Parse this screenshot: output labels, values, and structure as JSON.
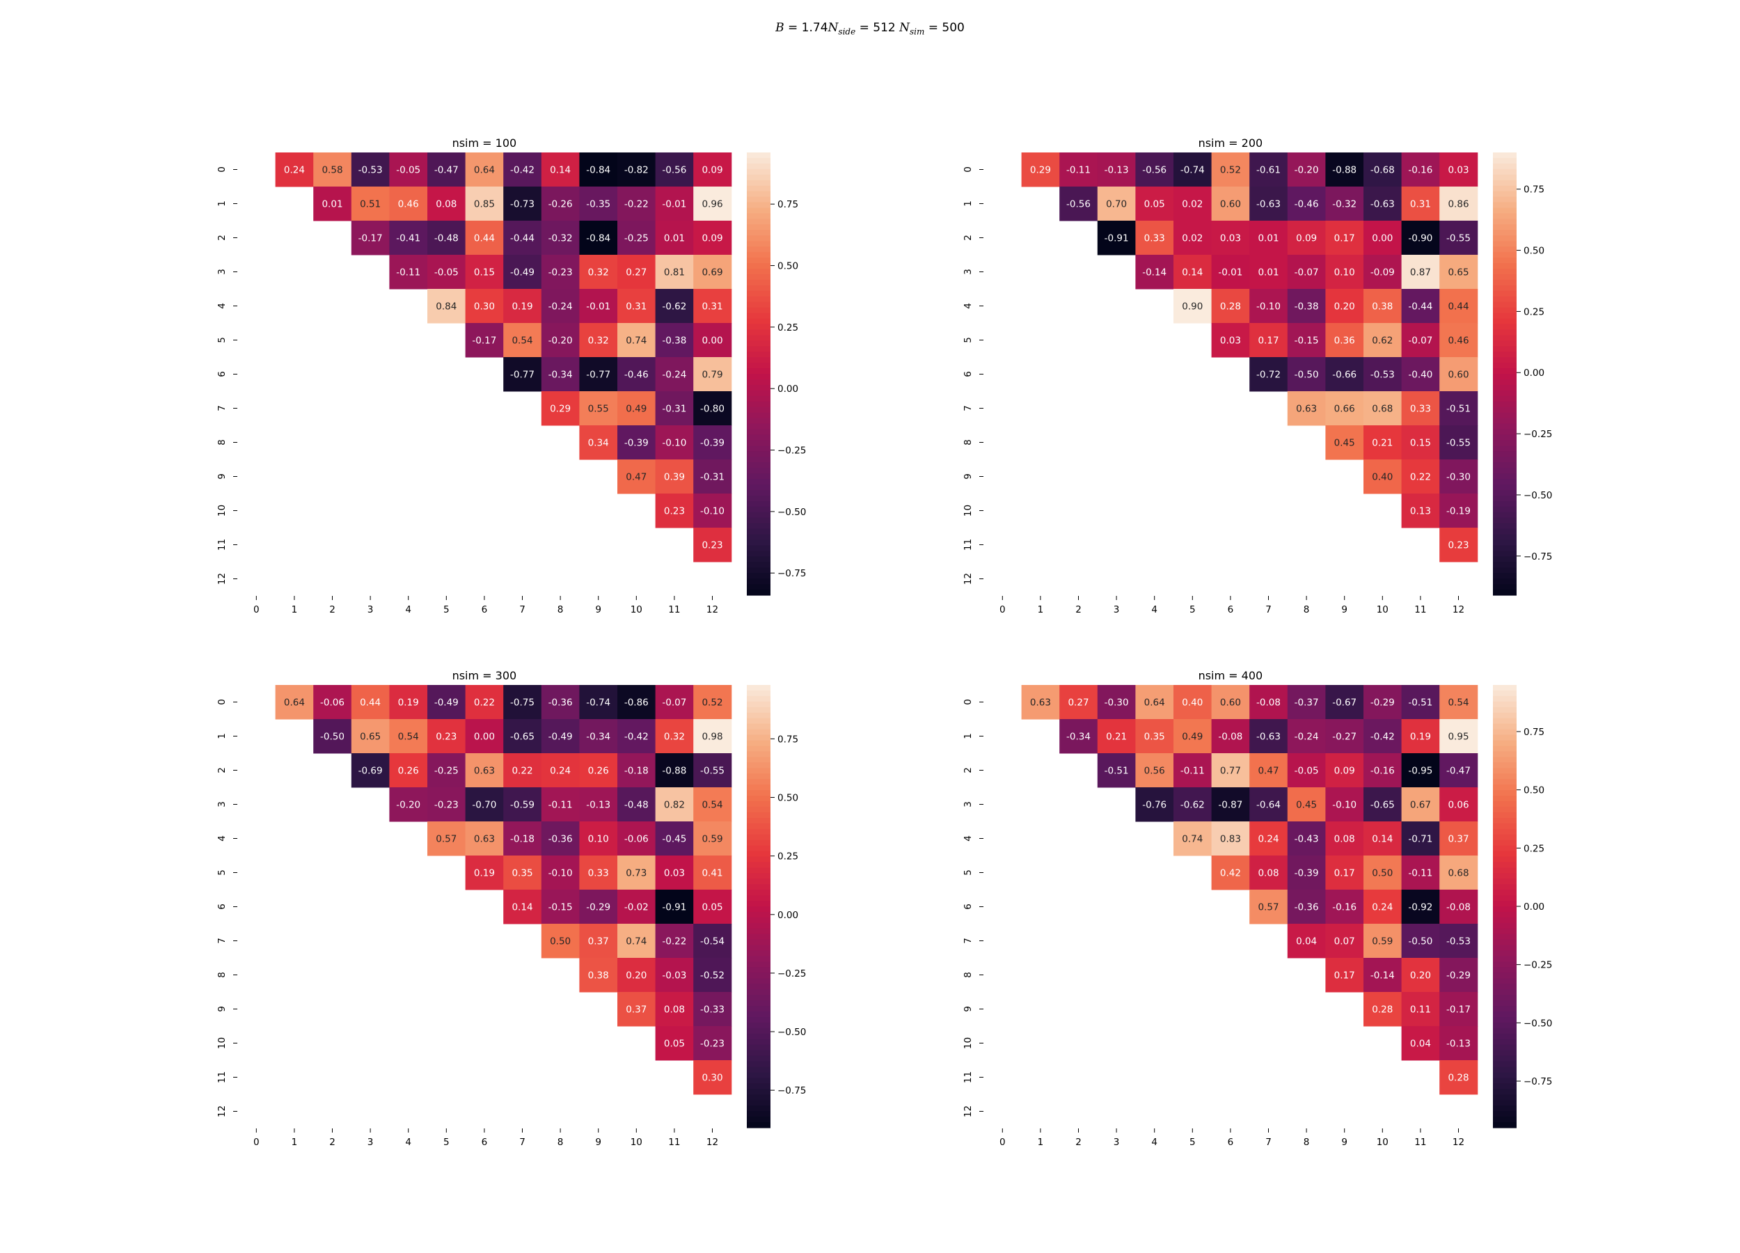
{
  "figure": {
    "suptitle": {
      "B": "1.74",
      "nside_label": "side",
      "nside": "512",
      "nsim_label": "sim",
      "nsim": "500"
    }
  },
  "chart_data": [
    {
      "type": "heatmap",
      "title": "nsim = 100",
      "x_ticks": [
        "0",
        "1",
        "2",
        "3",
        "4",
        "5",
        "6",
        "7",
        "8",
        "9",
        "10",
        "11",
        "12"
      ],
      "y_ticks": [
        "0",
        "1",
        "2",
        "3",
        "4",
        "5",
        "6",
        "7",
        "8",
        "9",
        "10",
        "11",
        "12"
      ],
      "colorbar": {
        "vmin": -0.84,
        "vmax": 0.96,
        "ticks": [
          "0.75",
          "0.50",
          "0.25",
          "0.00",
          "−0.25",
          "−0.50",
          "−0.75"
        ]
      },
      "rows": [
        [
          0.24,
          0.58,
          -0.53,
          -0.05,
          -0.47,
          0.64,
          -0.42,
          0.14,
          -0.84,
          -0.82,
          -0.56,
          0.09
        ],
        [
          0.01,
          0.51,
          0.46,
          0.08,
          0.85,
          -0.73,
          -0.26,
          -0.35,
          -0.22,
          -0.01,
          0.96
        ],
        [
          -0.17,
          -0.41,
          -0.48,
          0.44,
          -0.44,
          -0.32,
          -0.84,
          -0.25,
          0.01,
          0.09
        ],
        [
          -0.11,
          -0.05,
          0.15,
          -0.49,
          -0.23,
          0.32,
          0.27,
          0.81,
          0.69
        ],
        [
          0.84,
          0.3,
          0.19,
          -0.24,
          -0.01,
          0.31,
          -0.62,
          0.31
        ],
        [
          -0.17,
          0.54,
          -0.2,
          0.32,
          0.74,
          -0.38,
          0.0
        ],
        [
          -0.77,
          -0.34,
          -0.77,
          -0.46,
          -0.24,
          0.79
        ],
        [
          0.29,
          0.55,
          0.49,
          -0.31,
          -0.8
        ],
        [
          0.34,
          -0.39,
          -0.1,
          -0.39
        ],
        [
          0.47,
          0.39,
          -0.31
        ],
        [
          0.23,
          -0.1
        ],
        [
          0.23
        ]
      ]
    },
    {
      "type": "heatmap",
      "title": "nsim = 200",
      "x_ticks": [
        "0",
        "1",
        "2",
        "3",
        "4",
        "5",
        "6",
        "7",
        "8",
        "9",
        "10",
        "11",
        "12"
      ],
      "y_ticks": [
        "0",
        "1",
        "2",
        "3",
        "4",
        "5",
        "6",
        "7",
        "8",
        "9",
        "10",
        "11",
        "12"
      ],
      "colorbar": {
        "vmin": -0.91,
        "vmax": 0.9,
        "ticks": [
          "0.75",
          "0.50",
          "0.25",
          "0.00",
          "−0.25",
          "−0.50",
          "−0.75"
        ]
      },
      "rows": [
        [
          0.29,
          -0.11,
          -0.13,
          -0.56,
          -0.74,
          0.52,
          -0.61,
          -0.2,
          -0.88,
          -0.68,
          -0.16,
          0.03
        ],
        [
          -0.56,
          0.7,
          0.05,
          0.02,
          0.6,
          -0.63,
          -0.46,
          -0.32,
          -0.63,
          0.31,
          0.86
        ],
        [
          -0.91,
          0.33,
          0.02,
          0.03,
          0.01,
          0.09,
          0.17,
          0.0,
          -0.9,
          -0.55
        ],
        [
          -0.14,
          0.14,
          -0.01,
          0.01,
          -0.07,
          0.1,
          -0.09,
          0.87,
          0.65
        ],
        [
          0.9,
          0.28,
          -0.1,
          -0.38,
          0.2,
          0.38,
          -0.44,
          0.44
        ],
        [
          0.03,
          0.17,
          -0.15,
          0.36,
          0.62,
          -0.07,
          0.46
        ],
        [
          -0.72,
          -0.5,
          -0.66,
          -0.53,
          -0.4,
          0.6
        ],
        [
          0.63,
          0.66,
          0.68,
          0.33,
          -0.51
        ],
        [
          0.45,
          0.21,
          0.15,
          -0.55
        ],
        [
          0.4,
          0.22,
          -0.3
        ],
        [
          0.13,
          -0.19
        ],
        [
          0.23
        ]
      ]
    },
    {
      "type": "heatmap",
      "title": "nsim = 300",
      "x_ticks": [
        "0",
        "1",
        "2",
        "3",
        "4",
        "5",
        "6",
        "7",
        "8",
        "9",
        "10",
        "11",
        "12"
      ],
      "y_ticks": [
        "0",
        "1",
        "2",
        "3",
        "4",
        "5",
        "6",
        "7",
        "8",
        "9",
        "10",
        "11",
        "12"
      ],
      "colorbar": {
        "vmin": -0.91,
        "vmax": 0.98,
        "ticks": [
          "0.75",
          "0.50",
          "0.25",
          "0.00",
          "−0.25",
          "−0.50",
          "−0.75"
        ]
      },
      "rows": [
        [
          0.64,
          -0.06,
          0.44,
          0.19,
          -0.49,
          0.22,
          -0.75,
          -0.36,
          -0.74,
          -0.86,
          -0.07,
          0.52
        ],
        [
          -0.5,
          0.65,
          0.54,
          0.23,
          0.0,
          -0.65,
          -0.49,
          -0.34,
          -0.42,
          0.32,
          0.98
        ],
        [
          -0.69,
          0.26,
          -0.25,
          0.63,
          0.22,
          0.24,
          0.26,
          -0.18,
          -0.88,
          -0.55
        ],
        [
          -0.2,
          -0.23,
          -0.7,
          -0.59,
          -0.11,
          -0.13,
          -0.48,
          0.82,
          0.54
        ],
        [
          0.57,
          0.63,
          -0.18,
          -0.36,
          0.1,
          -0.06,
          -0.45,
          0.59
        ],
        [
          0.19,
          0.35,
          -0.1,
          0.33,
          0.73,
          0.03,
          0.41
        ],
        [
          0.14,
          -0.15,
          -0.29,
          -0.02,
          -0.91,
          0.05
        ],
        [
          0.5,
          0.37,
          0.74,
          -0.22,
          -0.54
        ],
        [
          0.38,
          0.2,
          -0.03,
          -0.52
        ],
        [
          0.37,
          0.08,
          -0.33
        ],
        [
          0.05,
          -0.23
        ],
        [
          0.3
        ]
      ]
    },
    {
      "type": "heatmap",
      "title": "nsim = 400",
      "x_ticks": [
        "0",
        "1",
        "2",
        "3",
        "4",
        "5",
        "6",
        "7",
        "8",
        "9",
        "10",
        "11",
        "12"
      ],
      "y_ticks": [
        "0",
        "1",
        "2",
        "3",
        "4",
        "5",
        "6",
        "7",
        "8",
        "9",
        "10",
        "11",
        "12"
      ],
      "colorbar": {
        "vmin": -0.95,
        "vmax": 0.95,
        "ticks": [
          "0.75",
          "0.50",
          "0.25",
          "0.00",
          "−0.25",
          "−0.50",
          "−0.75"
        ]
      },
      "rows": [
        [
          0.63,
          0.27,
          -0.3,
          0.64,
          0.4,
          0.6,
          -0.08,
          -0.37,
          -0.67,
          -0.29,
          -0.51,
          0.54
        ],
        [
          -0.34,
          0.21,
          0.35,
          0.49,
          -0.08,
          -0.63,
          -0.24,
          -0.27,
          -0.42,
          0.19,
          0.95
        ],
        [
          -0.51,
          0.56,
          -0.11,
          0.77,
          0.47,
          -0.05,
          0.09,
          -0.16,
          -0.95,
          -0.47
        ],
        [
          -0.76,
          -0.62,
          -0.87,
          -0.64,
          0.45,
          -0.1,
          -0.65,
          0.67,
          0.06
        ],
        [
          0.74,
          0.83,
          0.24,
          -0.43,
          0.08,
          0.14,
          -0.71,
          0.37
        ],
        [
          0.42,
          0.08,
          -0.39,
          0.17,
          0.5,
          -0.11,
          0.68
        ],
        [
          0.57,
          -0.36,
          -0.16,
          0.24,
          -0.92,
          -0.08
        ],
        [
          0.04,
          0.07,
          0.59,
          -0.5,
          -0.53
        ],
        [
          0.17,
          -0.14,
          0.2,
          -0.29
        ],
        [
          0.28,
          0.11,
          -0.17
        ],
        [
          0.04,
          -0.13
        ],
        [
          0.28
        ]
      ]
    }
  ]
}
